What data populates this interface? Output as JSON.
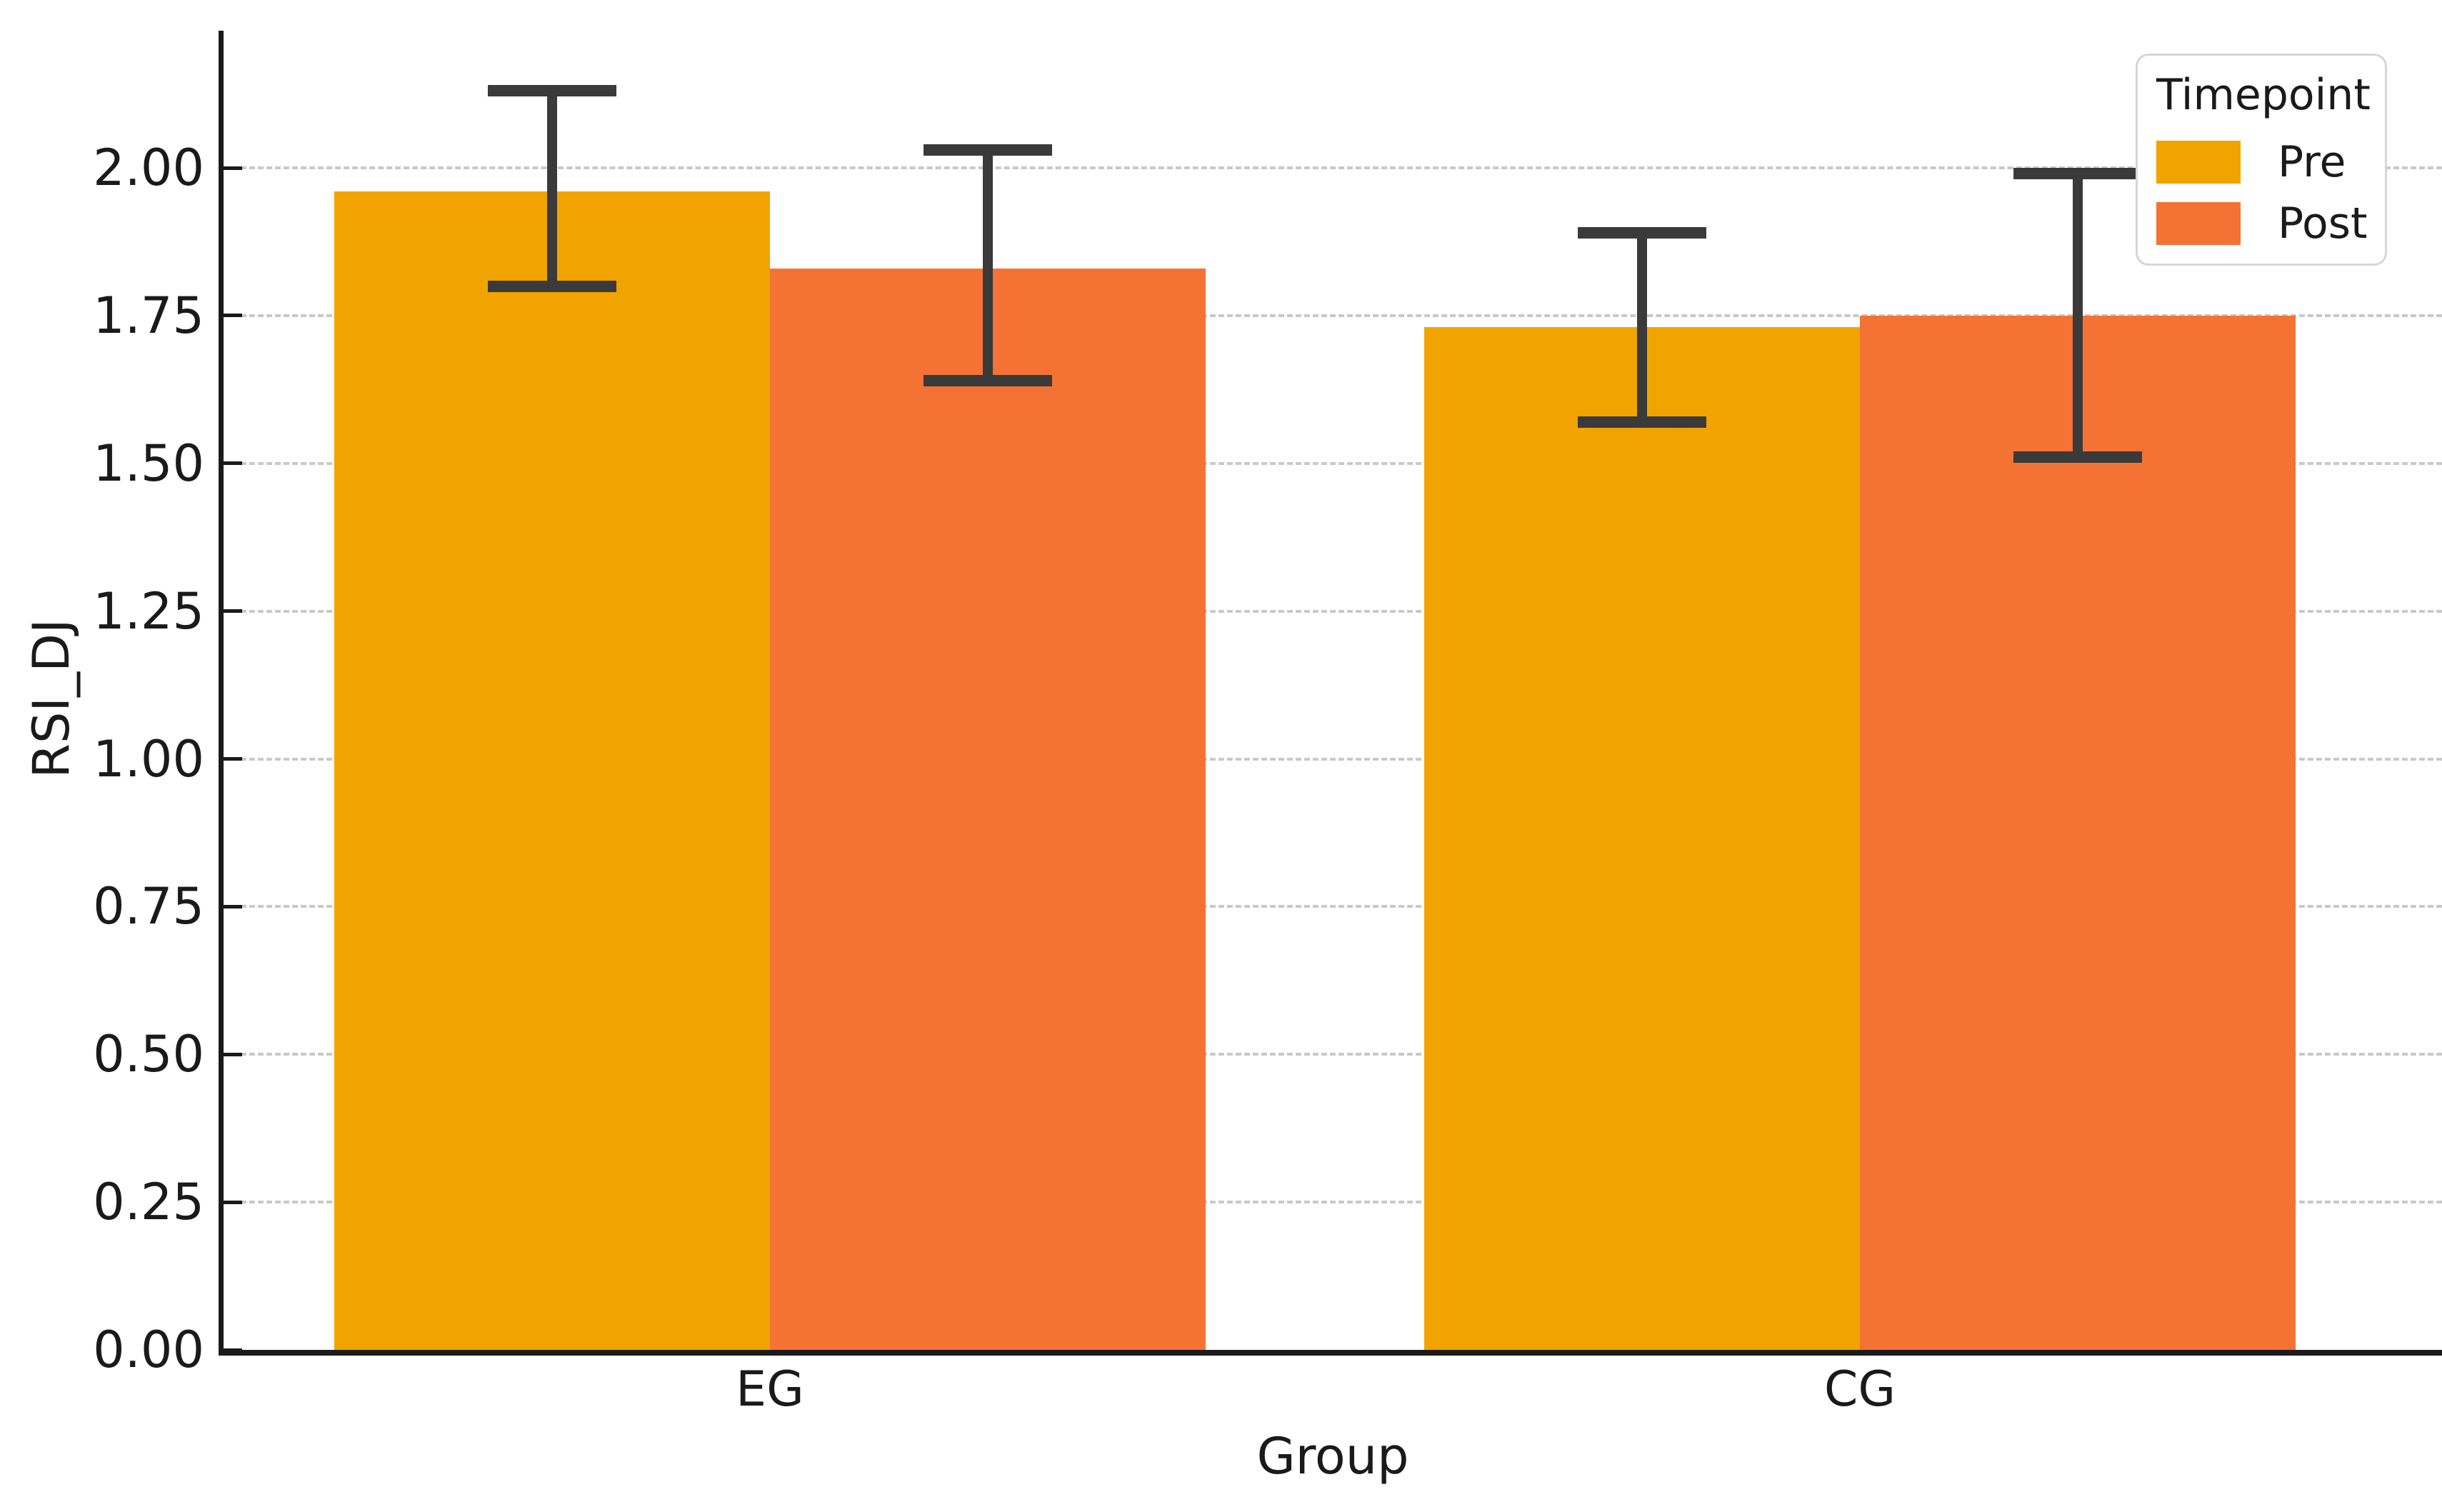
{
  "chart_data": {
    "type": "bar",
    "title": "",
    "xlabel": "Group",
    "ylabel": "RSI_DJ",
    "categories": [
      "EG",
      "CG"
    ],
    "series": [
      {
        "name": "Pre",
        "color": "#F1A400",
        "values": [
          1.96,
          1.73
        ],
        "ci_low": [
          1.8,
          1.57
        ],
        "ci_high": [
          2.13,
          1.89
        ]
      },
      {
        "name": "Post",
        "color": "#F47334",
        "values": [
          1.83,
          1.75
        ],
        "ci_low": [
          1.64,
          1.51
        ],
        "ci_high": [
          2.03,
          1.99
        ]
      }
    ],
    "yticks": [
      0.0,
      0.25,
      0.5,
      0.75,
      1.0,
      1.25,
      1.5,
      1.75,
      2.0
    ],
    "ytick_labels": [
      "0.00",
      "0.25",
      "0.50",
      "0.75",
      "1.00",
      "1.25",
      "1.50",
      "1.75",
      "2.00"
    ],
    "ylim": [
      0,
      2.23
    ],
    "grid": "horizontal-dashed",
    "grid_color": "#c9c9c9",
    "error_bar_color": "#3a3a3a",
    "legend": {
      "title": "Timepoint",
      "position": "upper-right",
      "entries": [
        "Pre",
        "Post"
      ]
    }
  }
}
